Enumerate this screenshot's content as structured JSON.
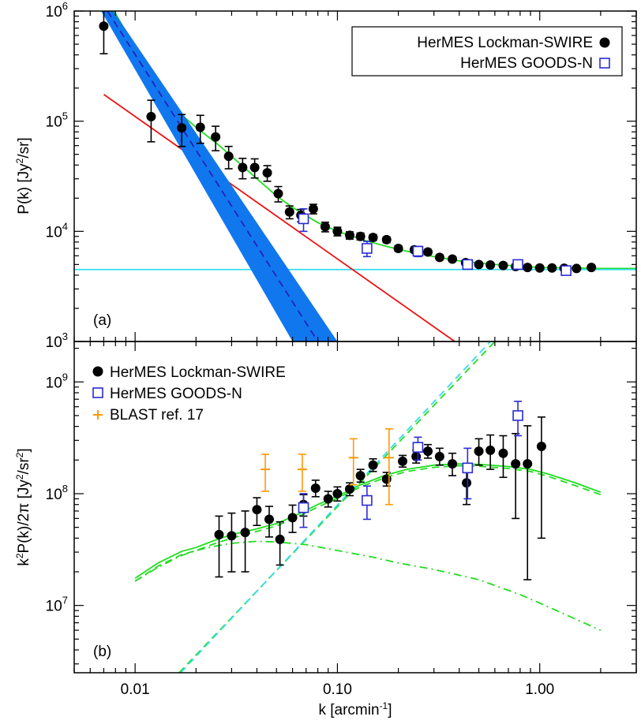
{
  "figure": {
    "xlabel_main": "k [arcmin",
    "xlabel_sup": "-1",
    "xlabel_end": "]",
    "xticks": [
      "0.01",
      "0.10",
      "1.00"
    ]
  },
  "chart_data": [
    {
      "type": "scatter",
      "panel_label": "(a)",
      "ylabel_main": "P(k) [Jy",
      "ylabel_sup": "2",
      "ylabel_end": "/sr]",
      "xscale": "log",
      "yscale": "log",
      "xlim": [
        0.005,
        3.0
      ],
      "ylim": [
        1000,
        1000000
      ],
      "ytick_labels": [
        {
          "value": 1000,
          "base": "10",
          "exp": "3"
        },
        {
          "value": 10000,
          "base": "10",
          "exp": "4"
        },
        {
          "value": 100000,
          "base": "10",
          "exp": "5"
        },
        {
          "value": 1000000,
          "base": "10",
          "exp": "6"
        }
      ],
      "legend_position": "top-right",
      "legend": [
        "HerMES Lockman-SWIRE",
        "HerMES GOODS-N"
      ],
      "colors": {
        "lockman": "#000000",
        "goods": "#2b2bd4",
        "total": "#22dd22",
        "poisson": "#33ddee",
        "clustered": "#ee1111",
        "cirrus_band": "#1177ee",
        "cirrus_line": "#2222bb"
      },
      "series": [
        {
          "name": "HerMES Lockman-SWIRE",
          "marker": "filled-circle",
          "x": [
            0.007,
            0.012,
            0.017,
            0.021,
            0.025,
            0.029,
            0.034,
            0.039,
            0.045,
            0.051,
            0.058,
            0.066,
            0.076,
            0.087,
            0.1,
            0.115,
            0.13,
            0.15,
            0.175,
            0.2,
            0.24,
            0.28,
            0.32,
            0.37,
            0.43,
            0.5,
            0.57,
            0.66,
            0.76,
            0.87,
            1.0,
            1.15,
            1.32,
            1.52,
            1.8
          ],
          "y": [
            730000,
            110000,
            87000,
            88000,
            72000,
            48000,
            38000,
            38000,
            34000,
            22000,
            15000,
            14000,
            16000,
            11000,
            10000,
            9200,
            9000,
            8800,
            8400,
            7000,
            6800,
            6500,
            5800,
            5600,
            5200,
            5000,
            4950,
            4900,
            4800,
            4700,
            4650,
            4650,
            4620,
            4600,
            4700
          ],
          "err": [
            320000,
            45000,
            28000,
            25000,
            18000,
            11000,
            8000,
            7500,
            5500,
            3500,
            2000,
            1800,
            1600,
            1100,
            900,
            700,
            650,
            550,
            500,
            400,
            380,
            340,
            300,
            280,
            250,
            230,
            220,
            210,
            200,
            200,
            190,
            190,
            180,
            180,
            190
          ]
        },
        {
          "name": "HerMES GOODS-N",
          "marker": "open-square",
          "x": [
            0.068,
            0.14,
            0.25,
            0.44,
            0.78,
            1.35
          ],
          "y": [
            13000,
            7000,
            6600,
            5000,
            5000,
            4400
          ],
          "err": [
            3000,
            1100,
            700,
            350,
            350,
            300
          ]
        }
      ],
      "lines": [
        {
          "id": "total",
          "style": "solid",
          "x": [
            0.0075,
            0.008,
            0.009,
            0.01,
            0.012,
            0.015,
            0.02,
            0.025,
            0.03,
            0.04,
            0.05,
            0.06,
            0.08,
            0.1,
            0.13,
            0.17,
            0.22,
            0.3,
            0.4,
            0.6,
            1.0,
            1.5,
            2.0,
            3.0
          ],
          "y": [
            1200000,
            950000,
            650000,
            420000,
            230000,
            140000,
            88000,
            64000,
            48000,
            30000,
            21000,
            16500,
            12000,
            10000,
            8500,
            7400,
            6600,
            5900,
            5400,
            5000,
            4700,
            4650,
            4600,
            4600
          ]
        },
        {
          "id": "poisson",
          "style": "solid",
          "x": [
            0.005,
            3.0
          ],
          "y": [
            4500,
            4500
          ]
        },
        {
          "id": "clustered",
          "style": "solid",
          "x": [
            0.007,
            0.38
          ],
          "y": [
            175000,
            1000
          ]
        },
        {
          "id": "cirrus",
          "style": "dashed",
          "x": [
            0.0073,
            0.08
          ],
          "y": [
            1000000,
            1000
          ],
          "band_x_top": [
            0.0068,
            0.0078
          ],
          "band_x_bottom": [
            0.06,
            0.1
          ]
        }
      ]
    },
    {
      "type": "scatter",
      "panel_label": "(b)",
      "ylabel_main": "k",
      "ylabel_sup": "2",
      "ylabel_mid": "P(k)/2π [Jy",
      "ylabel_sup2": "2",
      "ylabel_end": "/sr",
      "ylabel_sup3": "2",
      "ylabel_close": "]",
      "xscale": "log",
      "yscale": "log",
      "xlim": [
        0.005,
        3.0
      ],
      "ylim": [
        2500000,
        2300000000
      ],
      "ytick_labels": [
        {
          "value": 10000000,
          "base": "10",
          "exp": "7"
        },
        {
          "value": 100000000,
          "base": "10",
          "exp": "8"
        },
        {
          "value": 1000000000,
          "base": "10",
          "exp": "9"
        }
      ],
      "legend_position": "top-left",
      "legend": [
        "HerMES Lockman-SWIRE",
        "HerMES GOODS-N",
        "BLAST ref. 17"
      ],
      "colors": {
        "lockman": "#000000",
        "goods": "#2b2bd4",
        "blast": "#ff9900",
        "model": "#22dd22",
        "poisson": "#33ddee"
      },
      "series": [
        {
          "name": "HerMES Lockman-SWIRE",
          "marker": "filled-circle",
          "x": [
            0.026,
            0.03,
            0.035,
            0.04,
            0.046,
            0.052,
            0.06,
            0.068,
            0.078,
            0.09,
            0.1,
            0.115,
            0.13,
            0.15,
            0.175,
            0.21,
            0.245,
            0.28,
            0.32,
            0.37,
            0.435,
            0.5,
            0.57,
            0.66,
            0.76,
            0.87,
            1.02
          ],
          "y": [
            43000000,
            42000000,
            45000000,
            72000000,
            59000000,
            39000000,
            61000000,
            80000000,
            112000000,
            90000000,
            100000000,
            110000000,
            145000000,
            180000000,
            135000000,
            195000000,
            215000000,
            240000000,
            215000000,
            185000000,
            125000000,
            240000000,
            245000000,
            230000000,
            185000000,
            185000000,
            265000000
          ],
          "err_up": [
            20000000,
            25000000,
            25000000,
            20000000,
            18000000,
            17000000,
            18000000,
            18000000,
            20000000,
            15000000,
            15000000,
            15000000,
            20000000,
            25000000,
            20000000,
            25000000,
            30000000,
            35000000,
            40000000,
            45000000,
            40000000,
            70000000,
            90000000,
            100000000,
            160000000,
            220000000,
            220000000
          ],
          "err_down": [
            25000000,
            22000000,
            25000000,
            20000000,
            18000000,
            16000000,
            16000000,
            17000000,
            18000000,
            14000000,
            14000000,
            14000000,
            18000000,
            22000000,
            18000000,
            22000000,
            27000000,
            32000000,
            35000000,
            40000000,
            45000000,
            60000000,
            80000000,
            90000000,
            125000000,
            168000000,
            225000000
          ]
        },
        {
          "name": "HerMES GOODS-N",
          "marker": "open-square",
          "x": [
            0.068,
            0.14,
            0.25,
            0.44,
            0.78
          ],
          "y": [
            75000000,
            87000000,
            260000000,
            170000000,
            500000000
          ],
          "err_up": [
            25000000,
            30000000,
            60000000,
            85000000,
            170000000
          ],
          "err_down": [
            25000000,
            28000000,
            60000000,
            80000000,
            170000000
          ]
        },
        {
          "name": "BLAST ref. 17",
          "marker": "plus",
          "x": [
            0.044,
            0.067,
            0.12,
            0.18
          ],
          "y": [
            165000000,
            165000000,
            210000000,
            210000000
          ],
          "err_up": [
            60000000,
            60000000,
            100000000,
            170000000
          ],
          "err_down": [
            60000000,
            60000000,
            90000000,
            130000000
          ]
        }
      ],
      "lines": [
        {
          "id": "total",
          "style": "solid",
          "x": [
            0.01,
            0.013,
            0.017,
            0.02,
            0.025,
            0.03,
            0.04,
            0.05,
            0.06,
            0.08,
            0.1,
            0.13,
            0.17,
            0.22,
            0.3,
            0.4,
            0.5,
            0.7,
            0.9,
            1.1,
            1.5,
            2.0
          ],
          "y": [
            17500000,
            24000000,
            30500000,
            33000000,
            38500000,
            43000000,
            48500000,
            54000000,
            62000000,
            80000000,
            95000000,
            120000000,
            145000000,
            165000000,
            180000000,
            185000000,
            183000000,
            175000000,
            165000000,
            150000000,
            125000000,
            103000000
          ]
        },
        {
          "id": "clustered",
          "style": "dashed",
          "x": [
            0.01,
            0.013,
            0.017,
            0.02,
            0.025,
            0.03,
            0.04,
            0.05,
            0.06,
            0.08,
            0.1,
            0.13,
            0.17,
            0.22,
            0.3,
            0.4,
            0.5,
            0.7,
            0.9,
            1.1,
            1.5,
            2.0
          ],
          "y": [
            16500000,
            22500000,
            28500000,
            31000000,
            36000000,
            40000000,
            46000000,
            51500000,
            59000000,
            76000000,
            91000000,
            115000000,
            138000000,
            158000000,
            172000000,
            178000000,
            176000000,
            168000000,
            158000000,
            143000000,
            118000000,
            98000000
          ]
        },
        {
          "id": "one-halo",
          "style": "dashdot",
          "x": [
            0.01,
            0.013,
            0.017,
            0.02,
            0.025,
            0.03,
            0.04,
            0.05,
            0.07,
            0.1,
            0.15,
            0.2,
            0.3,
            0.5,
            0.8,
            1.0,
            1.4,
            2.0
          ],
          "y": [
            16500000,
            22000000,
            28000000,
            31000000,
            34000000,
            36000000,
            37500000,
            37000000,
            35000000,
            31000000,
            27000000,
            24000000,
            21000000,
            17000000,
            12500000,
            10500000,
            8000000,
            6000000
          ]
        },
        {
          "id": "two-halo",
          "style": "dashed",
          "x": [
            0.0165,
            0.6
          ],
          "y": [
            2500000,
            2300000000
          ]
        },
        {
          "id": "poisson",
          "style": "dashed",
          "x": [
            0.0168,
            0.57
          ],
          "y": [
            2500000,
            2300000000
          ]
        }
      ]
    }
  ]
}
